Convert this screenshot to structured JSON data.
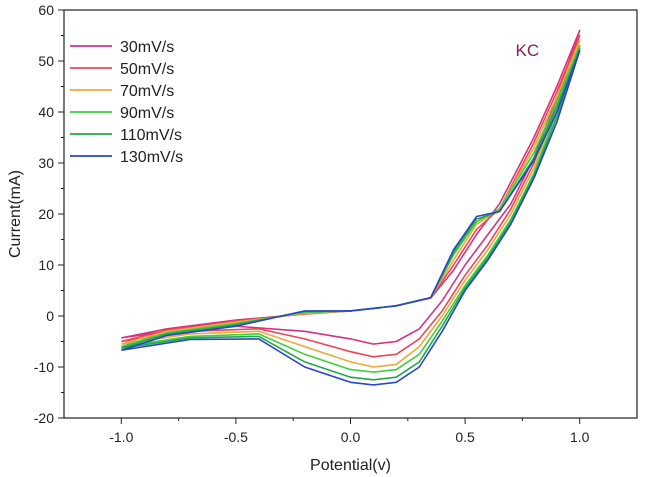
{
  "chart_data": {
    "type": "line",
    "title": "",
    "xlabel": "Potential(v)",
    "ylabel": "Current(mA)",
    "xlim": [
      -1.25,
      1.25
    ],
    "ylim": [
      -20,
      60
    ],
    "x_ticks": [
      -1.0,
      -0.5,
      0.0,
      0.5,
      1.0
    ],
    "x_tick_labels": [
      "-1.0",
      "-0.5",
      "0.0",
      "0.5",
      "1.0"
    ],
    "y_ticks": [
      -20,
      -10,
      0,
      10,
      20,
      30,
      40,
      50,
      60
    ],
    "y_tick_labels": [
      "-20",
      "-10",
      "0",
      "10",
      "20",
      "30",
      "40",
      "50",
      "60"
    ],
    "grid": false,
    "legend_position": "top-left",
    "annotation": {
      "text": "KC",
      "x": 0.72,
      "y": 51,
      "color": "#8b1f4f"
    },
    "series": [
      {
        "name": "30mV/s",
        "color": "#d6337f",
        "forward": [
          [
            -1.0,
            -4.3
          ],
          [
            -0.8,
            -2.5
          ],
          [
            -0.5,
            -0.8
          ],
          [
            -0.2,
            0.4
          ],
          [
            0.0,
            1.0
          ],
          [
            0.2,
            2.0
          ],
          [
            0.35,
            3.5
          ],
          [
            0.45,
            9.0
          ],
          [
            0.55,
            16.0
          ],
          [
            0.65,
            22.0
          ],
          [
            0.8,
            35.0
          ],
          [
            0.9,
            45.0
          ],
          [
            1.0,
            56.0
          ]
        ],
        "reverse": [
          [
            1.0,
            56.0
          ],
          [
            0.9,
            43.0
          ],
          [
            0.8,
            31.0
          ],
          [
            0.7,
            22.0
          ],
          [
            0.6,
            16.0
          ],
          [
            0.5,
            10.0
          ],
          [
            0.4,
            3.0
          ],
          [
            0.3,
            -2.5
          ],
          [
            0.2,
            -5.0
          ],
          [
            0.1,
            -5.5
          ],
          [
            0.0,
            -4.5
          ],
          [
            -0.2,
            -3.0
          ],
          [
            -0.5,
            -2.0
          ],
          [
            -0.8,
            -3.0
          ],
          [
            -1.0,
            -4.3
          ]
        ]
      },
      {
        "name": "50mV/s",
        "color": "#e8485a",
        "forward": [
          [
            -1.0,
            -5.0
          ],
          [
            -0.8,
            -2.8
          ],
          [
            -0.5,
            -1.0
          ],
          [
            -0.2,
            0.4
          ],
          [
            0.0,
            1.0
          ],
          [
            0.2,
            2.0
          ],
          [
            0.35,
            3.6
          ],
          [
            0.45,
            10.0
          ],
          [
            0.55,
            17.0
          ],
          [
            0.65,
            21.0
          ],
          [
            0.8,
            34.0
          ],
          [
            0.9,
            44.0
          ],
          [
            1.0,
            55.0
          ]
        ],
        "reverse": [
          [
            1.0,
            55.0
          ],
          [
            0.9,
            42.0
          ],
          [
            0.8,
            30.0
          ],
          [
            0.7,
            21.0
          ],
          [
            0.6,
            14.0
          ],
          [
            0.5,
            8.0
          ],
          [
            0.4,
            1.0
          ],
          [
            0.3,
            -4.5
          ],
          [
            0.2,
            -7.5
          ],
          [
            0.1,
            -8.0
          ],
          [
            0.0,
            -7.0
          ],
          [
            -0.2,
            -4.5
          ],
          [
            -0.4,
            -2.5
          ],
          [
            -0.7,
            -3.0
          ],
          [
            -1.0,
            -5.0
          ]
        ]
      },
      {
        "name": "70mV/s",
        "color": "#f0a838",
        "forward": [
          [
            -1.0,
            -5.5
          ],
          [
            -0.8,
            -3.0
          ],
          [
            -0.5,
            -1.2
          ],
          [
            -0.2,
            0.5
          ],
          [
            0.0,
            1.0
          ],
          [
            0.2,
            2.0
          ],
          [
            0.35,
            3.6
          ],
          [
            0.45,
            11.0
          ],
          [
            0.55,
            18.0
          ],
          [
            0.65,
            21.0
          ],
          [
            0.8,
            33.0
          ],
          [
            0.9,
            43.0
          ],
          [
            1.0,
            54.0
          ]
        ],
        "reverse": [
          [
            1.0,
            54.0
          ],
          [
            0.9,
            41.0
          ],
          [
            0.8,
            29.0
          ],
          [
            0.7,
            20.0
          ],
          [
            0.6,
            13.0
          ],
          [
            0.5,
            7.0
          ],
          [
            0.4,
            0.0
          ],
          [
            0.3,
            -6.0
          ],
          [
            0.2,
            -9.5
          ],
          [
            0.1,
            -10.0
          ],
          [
            0.0,
            -9.0
          ],
          [
            -0.2,
            -6.0
          ],
          [
            -0.4,
            -3.0
          ],
          [
            -0.7,
            -3.5
          ],
          [
            -1.0,
            -5.5
          ]
        ]
      },
      {
        "name": "90mV/s",
        "color": "#3fcf3f",
        "forward": [
          [
            -1.0,
            -6.0
          ],
          [
            -0.8,
            -3.3
          ],
          [
            -0.5,
            -1.5
          ],
          [
            -0.2,
            0.7
          ],
          [
            0.0,
            1.0
          ],
          [
            0.2,
            2.0
          ],
          [
            0.35,
            3.6
          ],
          [
            0.45,
            12.0
          ],
          [
            0.55,
            18.5
          ],
          [
            0.65,
            21.0
          ],
          [
            0.8,
            32.0
          ],
          [
            0.9,
            42.0
          ],
          [
            1.0,
            53.0
          ]
        ],
        "reverse": [
          [
            1.0,
            53.0
          ],
          [
            0.9,
            40.0
          ],
          [
            0.8,
            28.0
          ],
          [
            0.7,
            19.0
          ],
          [
            0.6,
            12.0
          ],
          [
            0.5,
            6.0
          ],
          [
            0.4,
            -1.0
          ],
          [
            0.3,
            -7.5
          ],
          [
            0.2,
            -10.5
          ],
          [
            0.1,
            -11.0
          ],
          [
            0.0,
            -10.5
          ],
          [
            -0.2,
            -7.5
          ],
          [
            -0.4,
            -3.5
          ],
          [
            -0.7,
            -4.0
          ],
          [
            -1.0,
            -6.0
          ]
        ]
      },
      {
        "name": "110mV/s",
        "color": "#22a84a",
        "forward": [
          [
            -1.0,
            -6.3
          ],
          [
            -0.8,
            -3.5
          ],
          [
            -0.5,
            -1.7
          ],
          [
            -0.2,
            0.9
          ],
          [
            0.0,
            1.0
          ],
          [
            0.2,
            2.0
          ],
          [
            0.35,
            3.6
          ],
          [
            0.45,
            12.5
          ],
          [
            0.55,
            19.0
          ],
          [
            0.65,
            20.5
          ],
          [
            0.8,
            31.0
          ],
          [
            0.9,
            41.0
          ],
          [
            1.0,
            52.5
          ]
        ],
        "reverse": [
          [
            1.0,
            52.5
          ],
          [
            0.9,
            39.0
          ],
          [
            0.8,
            27.5
          ],
          [
            0.7,
            18.5
          ],
          [
            0.6,
            11.5
          ],
          [
            0.5,
            5.5
          ],
          [
            0.4,
            -2.0
          ],
          [
            0.3,
            -9.0
          ],
          [
            0.2,
            -12.0
          ],
          [
            0.1,
            -12.5
          ],
          [
            0.0,
            -12.0
          ],
          [
            -0.2,
            -9.0
          ],
          [
            -0.4,
            -4.0
          ],
          [
            -0.7,
            -4.3
          ],
          [
            -1.0,
            -6.3
          ]
        ]
      },
      {
        "name": "130mV/s",
        "color": "#2a45c8",
        "forward": [
          [
            -1.0,
            -6.7
          ],
          [
            -0.8,
            -3.8
          ],
          [
            -0.5,
            -2.0
          ],
          [
            -0.2,
            1.0
          ],
          [
            0.0,
            1.0
          ],
          [
            0.2,
            2.0
          ],
          [
            0.35,
            3.6
          ],
          [
            0.45,
            13.0
          ],
          [
            0.55,
            19.5
          ],
          [
            0.65,
            20.5
          ],
          [
            0.8,
            30.5
          ],
          [
            0.9,
            40.0
          ],
          [
            1.0,
            52.0
          ]
        ],
        "reverse": [
          [
            1.0,
            52.0
          ],
          [
            0.9,
            38.0
          ],
          [
            0.8,
            27.0
          ],
          [
            0.7,
            18.0
          ],
          [
            0.6,
            11.0
          ],
          [
            0.5,
            5.0
          ],
          [
            0.4,
            -3.0
          ],
          [
            0.3,
            -10.0
          ],
          [
            0.2,
            -13.0
          ],
          [
            0.1,
            -13.5
          ],
          [
            0.0,
            -13.0
          ],
          [
            -0.2,
            -10.0
          ],
          [
            -0.4,
            -4.5
          ],
          [
            -0.7,
            -4.6
          ],
          [
            -1.0,
            -6.7
          ]
        ]
      }
    ]
  }
}
